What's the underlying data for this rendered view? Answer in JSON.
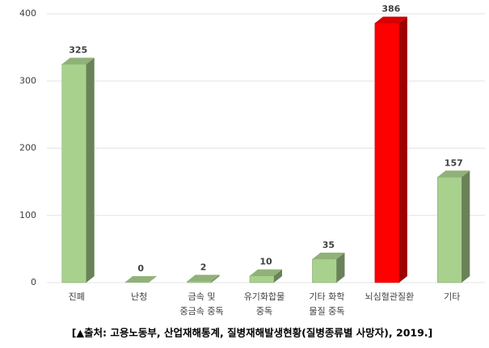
{
  "chart_data": {
    "type": "bar3d",
    "categories": [
      [
        "진폐"
      ],
      [
        "난청"
      ],
      [
        "금속 및",
        "중금속 중독"
      ],
      [
        "유기화합물",
        "중독"
      ],
      [
        "기타 화학",
        "물질 중독"
      ],
      [
        "뇌심혈관질환"
      ],
      [
        "기타"
      ]
    ],
    "values": [
      325,
      0,
      2,
      10,
      35,
      386,
      157
    ],
    "colors": [
      "#a9d18e",
      "#a9d18e",
      "#a9d18e",
      "#a9d18e",
      "#a9d18e",
      "#ff0000",
      "#a9d18e"
    ],
    "ylim": [
      0,
      400
    ],
    "yticks": [
      0,
      100,
      200,
      300,
      400
    ],
    "grid": true,
    "caption": "[▲출처: 고용노동부, 산업재해통계, 질병재해발생현황(질병종류별 사망자), 2019.]"
  }
}
